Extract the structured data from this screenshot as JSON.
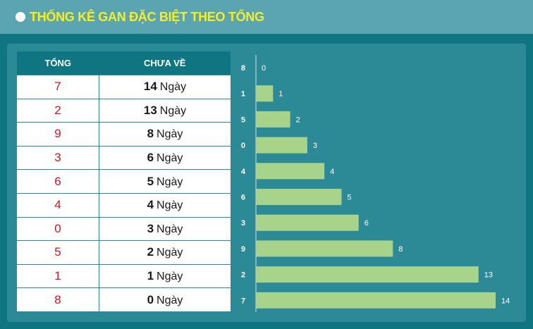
{
  "header": {
    "title": "THỐNG KÊ GAN ĐẶC BIỆT THEO TỔNG"
  },
  "table": {
    "col_sum": "TỔNG",
    "col_absent": "CHƯA VỀ",
    "unit": "Ngày",
    "rows": [
      {
        "sum": "7",
        "days": "14"
      },
      {
        "sum": "2",
        "days": "13"
      },
      {
        "sum": "9",
        "days": "8"
      },
      {
        "sum": "3",
        "days": "6"
      },
      {
        "sum": "6",
        "days": "5"
      },
      {
        "sum": "4",
        "days": "4"
      },
      {
        "sum": "0",
        "days": "3"
      },
      {
        "sum": "5",
        "days": "2"
      },
      {
        "sum": "1",
        "days": "1"
      },
      {
        "sum": "8",
        "days": "0"
      }
    ]
  },
  "chart_data": {
    "type": "bar",
    "orientation": "horizontal",
    "categories": [
      "8",
      "1",
      "5",
      "0",
      "4",
      "6",
      "3",
      "9",
      "2",
      "7"
    ],
    "values": [
      0,
      1,
      2,
      3,
      4,
      5,
      6,
      8,
      13,
      14
    ],
    "title": "",
    "xlabel": "",
    "ylabel": "",
    "bar_color": "#a8d38a"
  },
  "colors": {
    "background": "#0f7580",
    "header": "#5aa5b1",
    "title": "#f3ee2a",
    "sum_text": "#c8171e"
  }
}
